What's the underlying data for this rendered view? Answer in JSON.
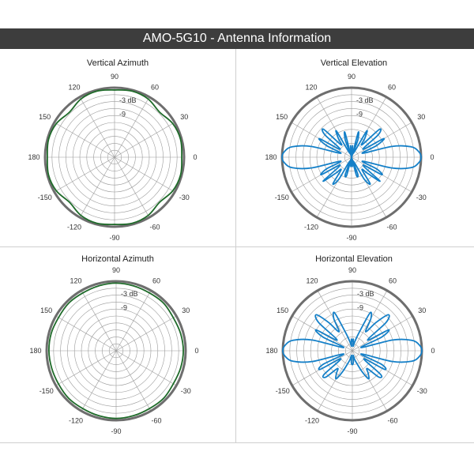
{
  "header": {
    "title": "AMO-5G10 - Antenna Information"
  },
  "colors": {
    "azimuth": "#1f6b2a",
    "elevation": "#1580c8",
    "header_bg": "#3d3d3d",
    "grid": "#9a9a9a",
    "rim": "#6e6e6e"
  },
  "chart_data": [
    {
      "type": "polar-line",
      "title": "Vertical Azimuth",
      "angle_ticks": [
        "90",
        "60",
        "30",
        "0",
        "-30",
        "-60",
        "-90",
        "-120",
        "-150",
        "180",
        "150",
        "120"
      ],
      "ring_labels": [
        "-3 dB",
        "-9"
      ],
      "r_range_db": [
        -30,
        0
      ],
      "color": "#1f6b2a",
      "series": [
        {
          "theta_deg": [
            0,
            15,
            30,
            45,
            60,
            75,
            90,
            105,
            120,
            135,
            150,
            165,
            180,
            195,
            210,
            225,
            240,
            255,
            270,
            285,
            300,
            315,
            330,
            345
          ],
          "gain_db": [
            -1,
            -0.5,
            -1,
            -2.5,
            -1,
            -0.5,
            -1,
            -0.5,
            -1,
            -2.5,
            -1,
            -0.5,
            -1,
            -0.5,
            -1,
            -2.5,
            -1,
            -0.5,
            -1,
            -0.5,
            -1,
            -2.5,
            -1,
            -0.5
          ]
        }
      ]
    },
    {
      "type": "polar-line",
      "title": "Vertical Elevation",
      "angle_ticks": [
        "90",
        "60",
        "30",
        "0",
        "-30",
        "-60",
        "-90",
        "-120",
        "-150",
        "180",
        "150",
        "120"
      ],
      "ring_labels": [
        "-3 dB",
        "-9"
      ],
      "r_range_db": [
        -30,
        0
      ],
      "color": "#1580c8",
      "series": [
        {
          "theta_deg": [
            0,
            5,
            10,
            15,
            20,
            25,
            30,
            35,
            40,
            45,
            50,
            55,
            60,
            65,
            70,
            75,
            80,
            85,
            90,
            95,
            100,
            105,
            110,
            115,
            120,
            125,
            130,
            135,
            140,
            145,
            150,
            155,
            160,
            165,
            170,
            175,
            180,
            185,
            190,
            195,
            200,
            205,
            210,
            215,
            220,
            225,
            230,
            235,
            240,
            245,
            250,
            255,
            260,
            265,
            270,
            275,
            280,
            285,
            290,
            295,
            300,
            305,
            310,
            315,
            320,
            325,
            330,
            335,
            340,
            345,
            350,
            355
          ],
          "gain_db": [
            0,
            -1,
            -4,
            -12,
            -25,
            -18,
            -14,
            -24,
            -15,
            -13,
            -23,
            -20,
            -17,
            -28,
            -22,
            -19,
            -30,
            -25,
            -30,
            -25,
            -30,
            -19,
            -22,
            -28,
            -17,
            -20,
            -23,
            -13,
            -15,
            -24,
            -14,
            -18,
            -25,
            -12,
            -4,
            -1,
            0,
            -1,
            -4,
            -12,
            -25,
            -18,
            -15,
            -24,
            -14,
            -20,
            -23,
            -16,
            -19,
            -28,
            -22,
            -22,
            -30,
            -26,
            -30,
            -26,
            -30,
            -22,
            -22,
            -28,
            -19,
            -16,
            -23,
            -20,
            -14,
            -24,
            -15,
            -18,
            -25,
            -12,
            -4,
            -1
          ]
        }
      ]
    },
    {
      "type": "polar-line",
      "title": "Horizontal Azimuth",
      "angle_ticks": [
        "90",
        "60",
        "30",
        "0",
        "-30",
        "-60",
        "-90",
        "-120",
        "-150",
        "180",
        "150",
        "120"
      ],
      "ring_labels": [
        "-3 dB",
        "-9"
      ],
      "r_range_db": [
        -30,
        0
      ],
      "color": "#1f6b2a",
      "series": [
        {
          "theta_deg": [
            0,
            15,
            30,
            45,
            60,
            75,
            90,
            105,
            120,
            135,
            150,
            165,
            180,
            195,
            210,
            225,
            240,
            255,
            270,
            285,
            300,
            315,
            330,
            345
          ],
          "gain_db": [
            -1,
            -1.2,
            -1.5,
            -1,
            -1.2,
            -1,
            -0.8,
            -1,
            -1.2,
            -1,
            -1.3,
            -1,
            -1,
            -1.2,
            -1.3,
            -1,
            -1.2,
            -1,
            -0.8,
            -1,
            -1.2,
            -1,
            -1.5,
            -1.2
          ]
        }
      ]
    },
    {
      "type": "polar-line",
      "title": "Horizontal Elevation",
      "angle_ticks": [
        "90",
        "60",
        "30",
        "0",
        "-30",
        "-60",
        "-90",
        "-120",
        "-150",
        "180",
        "150",
        "120"
      ],
      "ring_labels": [
        "-3 dB",
        "-9"
      ],
      "r_range_db": [
        -30,
        0
      ],
      "color": "#1580c8",
      "series": [
        {
          "theta_deg": [
            0,
            5,
            10,
            15,
            20,
            25,
            30,
            35,
            40,
            45,
            50,
            55,
            60,
            65,
            70,
            75,
            80,
            85,
            90,
            95,
            100,
            105,
            110,
            115,
            120,
            125,
            130,
            135,
            140,
            145,
            150,
            155,
            160,
            165,
            170,
            175,
            180,
            185,
            190,
            195,
            200,
            205,
            210,
            215,
            220,
            225,
            230,
            235,
            240,
            245,
            250,
            255,
            260,
            265,
            270,
            275,
            280,
            285,
            290,
            295,
            300,
            305,
            310,
            315,
            320,
            325,
            330,
            335,
            340,
            345,
            350,
            355
          ],
          "gain_db": [
            0,
            -1,
            -4,
            -12,
            -26,
            -16,
            -12,
            -22,
            -11,
            -8,
            -14,
            -20,
            -14,
            -12,
            -22,
            -26,
            -28,
            -25,
            -26,
            -25,
            -28,
            -26,
            -22,
            -12,
            -14,
            -20,
            -14,
            -8,
            -11,
            -22,
            -12,
            -16,
            -26,
            -12,
            -4,
            -1,
            0,
            -1,
            -4,
            -12,
            -26,
            -16,
            -14,
            -24,
            -14,
            -14,
            -20,
            -18,
            -16,
            -20,
            -24,
            -26,
            -28,
            -25,
            -24,
            -25,
            -28,
            -26,
            -24,
            -20,
            -16,
            -18,
            -20,
            -14,
            -14,
            -24,
            -14,
            -16,
            -26,
            -12,
            -4,
            -1
          ]
        }
      ]
    }
  ]
}
